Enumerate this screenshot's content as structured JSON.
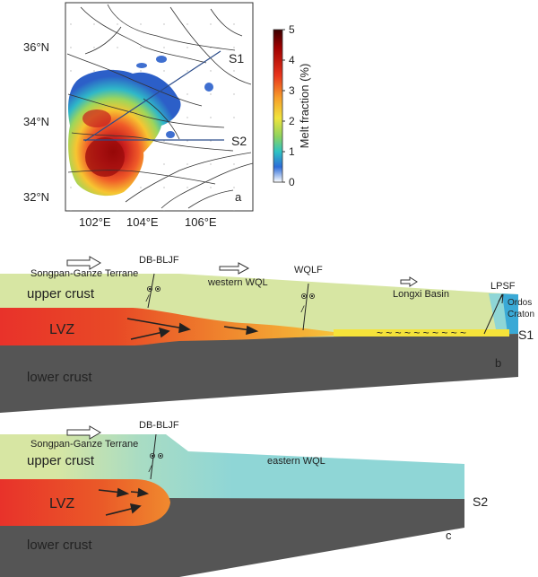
{
  "map": {
    "panel_label": "a",
    "lat_labels": [
      "36°N",
      "34°N",
      "32°N"
    ],
    "lon_labels": [
      "102°E",
      "104°E",
      "106°E"
    ],
    "profile_labels": [
      "S1",
      "S2"
    ],
    "colorbar": {
      "title": "Melt fraction (%)",
      "ticks": [
        "5",
        "4",
        "3",
        "2",
        "1",
        "0"
      ],
      "range": [
        0,
        5
      ]
    }
  },
  "section_b": {
    "panel_label": "b",
    "profile_label": "S1",
    "terrane": "Songpan-Ganze Terrane",
    "fault_1": "DB-BLJF",
    "block": "western WQL",
    "fault_2": "WQLF",
    "basin": "Longxi Basin",
    "fault_3": "LPSF",
    "craton_1": "Ordos",
    "craton_2": "Craton",
    "upper_crust": "upper crust",
    "lvz": "LVZ",
    "lower_crust": "lower crust",
    "wave_text": "~ ~ ~ ~ ~ ~ ~ ~ ~ ~"
  },
  "section_c": {
    "panel_label": "c",
    "profile_label": "S2",
    "terrane": "Songpan-Ganze Terrane",
    "fault_1": "DB-BLJF",
    "block": "eastern WQL",
    "upper_crust": "upper crust",
    "lvz": "LVZ",
    "lower_crust": "lower crust"
  },
  "colors": {
    "upper_crust": "#d7e6a3",
    "lower_crust": "#555555",
    "lvz": "#e63b2a",
    "eastern_wql": "#8fd6d6",
    "basin_layer": "#f5e33a",
    "ordos": "#3aa9d6"
  }
}
